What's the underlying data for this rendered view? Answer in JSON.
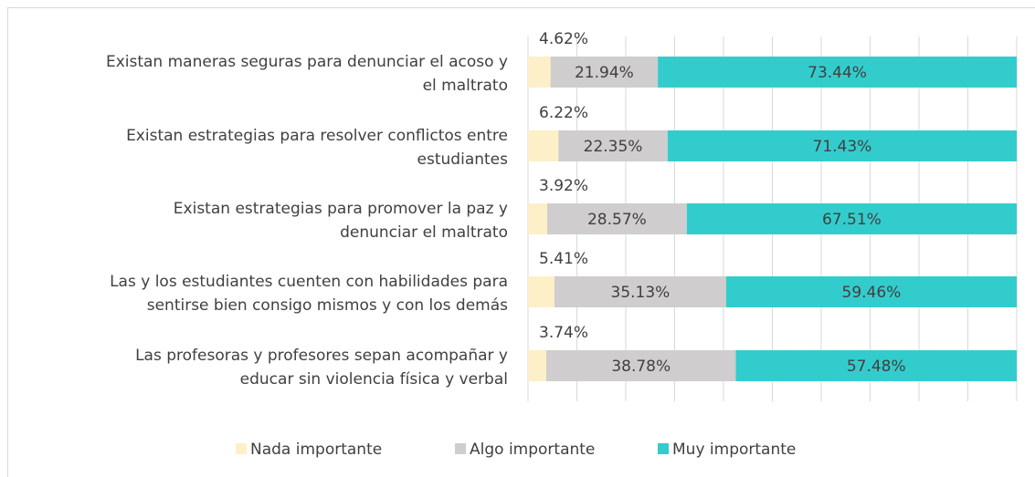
{
  "chart_data": {
    "type": "stacked_barh",
    "categories": [
      [
        "Existan maneras seguras para denunciar el acoso y",
        "el maltrato"
      ],
      [
        "Existan estrategias para resolver conflictos entre",
        "estudiantes"
      ],
      [
        "Existan estrategias para promover la paz y",
        "denunciar el maltrato"
      ],
      [
        "Las y los estudiantes cuenten con habilidades para",
        "sentirse bien consigo mismos y con los demás"
      ],
      [
        "Las profesoras y profesores sepan acompañar y",
        "educar sin violencia física y verbal"
      ]
    ],
    "series": [
      {
        "name": "Nada importante",
        "color": "#fdf0c8",
        "values": [
          4.62,
          6.22,
          3.92,
          5.41,
          3.74
        ],
        "value_labels": [
          "4.62%",
          "6.22%",
          "3.92%",
          "5.41%",
          "3.74%"
        ]
      },
      {
        "name": "Algo importante",
        "color": "#cfcdcd",
        "values": [
          21.94,
          22.35,
          28.57,
          35.13,
          38.78
        ],
        "value_labels": [
          "21.94%",
          "22.35%",
          "28.57%",
          "35.13%",
          "38.78%"
        ]
      },
      {
        "name": "Muy importante",
        "color": "#33cccc",
        "values": [
          73.44,
          71.43,
          67.51,
          59.46,
          57.48
        ],
        "value_labels": [
          "73.44%",
          "71.43%",
          "67.51%",
          "59.46%",
          "57.48%"
        ]
      }
    ],
    "xlim": [
      0,
      100
    ],
    "xticks": [
      0,
      10,
      20,
      30,
      40,
      50,
      60,
      70,
      80,
      90,
      100
    ],
    "grid": true,
    "legend": "bottom"
  }
}
